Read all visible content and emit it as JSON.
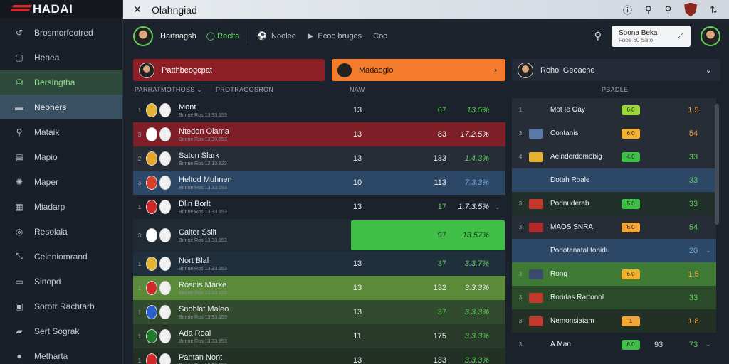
{
  "brand": {
    "name": "HADAI",
    "accent": "#d8262a"
  },
  "topbar": {
    "close_icon": "✕",
    "title": "Olahngiad"
  },
  "sidebar": {
    "items": [
      {
        "label": "Brosmorfeotred",
        "icon": "↺",
        "state": ""
      },
      {
        "label": "Henea",
        "icon": "▢",
        "state": ""
      },
      {
        "label": "Berslngtha",
        "icon": "⛁",
        "state": "active"
      },
      {
        "label": "Neohers",
        "icon": "▬",
        "state": "selected"
      },
      {
        "label": "Mataik",
        "icon": "⚲",
        "state": ""
      },
      {
        "label": "Mapio",
        "icon": "▤",
        "state": ""
      },
      {
        "label": "Maper",
        "icon": "✺",
        "state": ""
      },
      {
        "label": "Miadarp",
        "icon": "▦",
        "state": ""
      },
      {
        "label": "Resolala",
        "icon": "◎",
        "state": ""
      },
      {
        "label": "Celeniomrand",
        "icon": "⤡",
        "state": ""
      },
      {
        "label": "Sinopd",
        "icon": "▭",
        "state": ""
      },
      {
        "label": "Sorotr Rachtarb",
        "icon": "▣",
        "state": ""
      },
      {
        "label": "Sert Sograk",
        "icon": "▰",
        "state": ""
      },
      {
        "label": "Metharta",
        "icon": "●",
        "state": ""
      }
    ]
  },
  "subhead": {
    "user_name": "Hartnagsh",
    "tag": "Reclta",
    "items": [
      "Noolee",
      "Ecoo bruges",
      "Coo"
    ],
    "card_title": "Soona Beka",
    "card_sub": "Fooe 60 Sato"
  },
  "banners": {
    "b1": "Patthbeogcpat",
    "b2": "Madaoglo",
    "b3": "Rohol Geoache"
  },
  "columns": {
    "left_a": "PARRATMOTHOSS",
    "left_b": "PROTRAGOSRON",
    "mid": "NAW",
    "right": "PBADLE"
  },
  "left_rows": [
    {
      "rank": "1",
      "team": "Mont",
      "sub": "Bonne Ros 13.33.153",
      "c1": "13",
      "c2": "67",
      "c3": "13.5%",
      "c2color": "#5fd05a",
      "c3color": "#5fd05a",
      "bg": "#1c222c",
      "crest": "#e4b331",
      "chev": ""
    },
    {
      "rank": "3",
      "team": "Ntedon Olama",
      "sub": "Bonne Ros 13.33.853",
      "c1": "13",
      "c2": "83",
      "c3": "17.2.5%",
      "c2color": "#eef0f3",
      "c3color": "#eef0f3",
      "bg": "#7e1e26",
      "crest": "#ffffff",
      "chev": ""
    },
    {
      "rank": "2",
      "team": "Saton Slark",
      "sub": "Bonne Ros 12.13.823",
      "c1": "13",
      "c2": "133",
      "c3": "1.4.3%",
      "c2color": "#eef0f3",
      "c3color": "#5fd05a",
      "bg": "#262d37",
      "crest": "#e4a528",
      "chev": ""
    },
    {
      "rank": "3",
      "team": "Heltod Muhnen",
      "sub": "Bonne Ros 13.33.153",
      "c1": "10",
      "c2": "113",
      "c3": "7.3.3%",
      "c2color": "#eef0f3",
      "c3color": "#6fa3e0",
      "bg": "#2d4766",
      "crest": "#d5402a",
      "chev": ""
    },
    {
      "rank": "1",
      "team": "Dlin Borlt",
      "sub": "Bonne Ros 13.33.153",
      "c1": "13",
      "c2": "17",
      "c3": "1.7.3.5%",
      "c2color": "#5fd05a",
      "c3color": "#eef0f3",
      "bg": "#1c222c",
      "crest": "#cc2828",
      "chev": "⌄"
    },
    {
      "rank": "3",
      "team": "Caltor Sslit",
      "sub": "Bonne Ros 13.33.153",
      "c1": "",
      "c2": "97",
      "c3": "13.57%",
      "c2color": "#153015",
      "c3color": "#153015",
      "bg": "#1f2a33",
      "crest": "#ffffff",
      "chev": "",
      "highlight": true
    },
    {
      "rank": "1",
      "team": "Nort Blal",
      "sub": "Bonne Ros 13.33.153",
      "c1": "13",
      "c2": "37",
      "c3": "3.3.7%",
      "c2color": "#5fd05a",
      "c3color": "#5fd05a",
      "bg": "#1f2f3c",
      "crest": "#e4b331",
      "chev": ""
    },
    {
      "rank": "1",
      "team": "Rosnis Marke",
      "sub": "Bonne Ros 13.33.153",
      "c1": "13",
      "c2": "132",
      "c3": "3.3.3%",
      "c2color": "#eef0f3",
      "c3color": "#eef0f3",
      "bg": "#5a8a3a",
      "crest": "#d02a2a",
      "chev": ""
    },
    {
      "rank": "1",
      "team": "Snoblat Maleo",
      "sub": "Bonne Ros 13.33.153",
      "c1": "13",
      "c2": "37",
      "c3": "3.3.3%",
      "c2color": "#5fd05a",
      "c3color": "#5fd05a",
      "bg": "#324a2e",
      "crest": "#2a5fd0",
      "chev": ""
    },
    {
      "rank": "1",
      "team": "Ada Roal",
      "sub": "Bonne Ros 13.33.153",
      "c1": "11",
      "c2": "175",
      "c3": "3.3.3%",
      "c2color": "#eef0f3",
      "c3color": "#5fd05a",
      "bg": "#2a3a2a",
      "crest": "#1f7a2a",
      "chev": ""
    },
    {
      "rank": "1",
      "team": "Pantan Nont",
      "sub": "Bonne Ros 13.33.153",
      "c1": "13",
      "c2": "133",
      "c3": "3.3.3%",
      "c2color": "#eef0f3",
      "c3color": "#5fd05a",
      "bg": "#223026",
      "crest": "#d02a2a",
      "chev": ""
    }
  ],
  "right_rows": [
    {
      "rank": "1",
      "name": "Mot   Ie Oay",
      "pill": "6.0",
      "pillcolor": "#9bd83a",
      "mid": "",
      "value": "1.5",
      "vcolor": "#f4a534",
      "bg": "#262d37",
      "crest": "#262d37",
      "chev": ""
    },
    {
      "rank": "3",
      "name": "Contanis",
      "pill": "6.0",
      "pillcolor": "#f4b22c",
      "mid": "",
      "value": "54",
      "vcolor": "#f4a534",
      "bg": "#262d37",
      "crest": "#5a79a8",
      "chev": ""
    },
    {
      "rank": "4",
      "name": "Aelnderdomobig",
      "pill": "4.0",
      "pillcolor": "#3fbf45",
      "mid": "",
      "value": "33",
      "vcolor": "#5fd05a",
      "bg": "#262d37",
      "crest": "#e4b331",
      "chev": ""
    },
    {
      "rank": "",
      "name": "Dotah Roale",
      "pill": "",
      "pillcolor": "",
      "mid": "",
      "value": "33",
      "vcolor": "#5fd05a",
      "bg": "#2d4766",
      "crest": "#2d4766",
      "chev": ""
    },
    {
      "rank": "3",
      "name": "Podnuderab",
      "pill": "5.0",
      "pillcolor": "#3fbf45",
      "mid": "",
      "value": "33",
      "vcolor": "#5fd05a",
      "bg": "#21302b",
      "crest": "#c0392b",
      "chev": ""
    },
    {
      "rank": "3",
      "name": "MAOS SNRA",
      "pill": "6.0",
      "pillcolor": "#f4a534",
      "mid": "",
      "value": "54",
      "vcolor": "#5fd05a",
      "bg": "#262d37",
      "crest": "#b02a2a",
      "chev": ""
    },
    {
      "rank": "",
      "name": "Podotanatal tonidu",
      "pill": "",
      "pillcolor": "",
      "mid": "",
      "value": "20",
      "vcolor": "#6fb3e8",
      "bg": "#2d4766",
      "crest": "#2d4766",
      "chev": "⌄"
    },
    {
      "rank": "3",
      "name": "Rong",
      "pill": "6.0",
      "pillcolor": "#f4b22c",
      "mid": "",
      "value": "1.5",
      "vcolor": "#f4a534",
      "bg": "#3f7a34",
      "crest": "#3a4a6a",
      "chev": ""
    },
    {
      "rank": "3",
      "name": "Roridas Rartonol",
      "pill": "",
      "pillcolor": "",
      "mid": "",
      "value": "33",
      "vcolor": "#5fd05a",
      "bg": "#2a4a2a",
      "crest": "#c0392b",
      "chev": ""
    },
    {
      "rank": "3",
      "name": "Nemonsiatam",
      "pill": "1",
      "pillcolor": "#f4a534",
      "mid": "",
      "value": "1.8",
      "vcolor": "#f4a534",
      "bg": "#223026",
      "crest": "#c0392b",
      "chev": ""
    },
    {
      "rank": "3",
      "name": "A.Man",
      "pill": "6.0",
      "pillcolor": "#3fbf45",
      "mid": "93",
      "value": "73",
      "vcolor": "#5fd05a",
      "bg": "#1c222c",
      "crest": "#1c222c",
      "chev": "⌄"
    }
  ]
}
